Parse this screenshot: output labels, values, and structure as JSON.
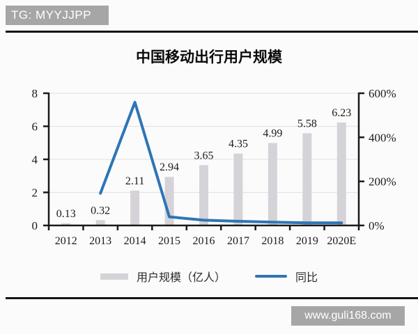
{
  "badges": {
    "tg": "TG: MYYJJPP",
    "watermark": "www.guli168.com"
  },
  "chart_data": {
    "type": "bar+line combo",
    "title": "中国移动出行用户规模",
    "categories": [
      "2012",
      "2013",
      "2014",
      "2015",
      "2016",
      "2017",
      "2018",
      "2019",
      "2020E"
    ],
    "series": [
      {
        "name": "用户规模（亿人）",
        "type": "bar",
        "axis": "left",
        "color": "#d5d3d7",
        "values": [
          0.13,
          0.32,
          2.11,
          2.94,
          3.65,
          4.35,
          4.99,
          5.58,
          6.23
        ],
        "labels": [
          "0.13",
          "0.32",
          "2.11",
          "2.94",
          "3.65",
          "4.35",
          "4.99",
          "5.58",
          "6.23"
        ]
      },
      {
        "name": "同比",
        "type": "line",
        "axis": "right",
        "color": "#2e75b6",
        "values_percent": [
          null,
          146,
          559,
          39,
          24,
          19,
          15,
          12,
          12
        ]
      }
    ],
    "left_axis": {
      "tick_labels": [
        "0",
        "2",
        "4",
        "6",
        "8"
      ],
      "tick_values": [
        0,
        2,
        4,
        6,
        8
      ],
      "min": 0,
      "max": 8
    },
    "right_axis": {
      "tick_labels": [
        "0%",
        "200%",
        "400%",
        "600%"
      ],
      "tick_values": [
        0,
        200,
        400,
        600
      ],
      "min": 0,
      "max": 600
    },
    "grid": true,
    "legend_position": "bottom",
    "colors": {
      "bar": "#d5d3d7",
      "line": "#2e75b6",
      "axis": "#1a1a1a",
      "gridline": "#e4e2e5",
      "label_text": "#1b1b1b",
      "badge_bg": "#a6a6a6",
      "badge_text": "#ffffff"
    }
  }
}
